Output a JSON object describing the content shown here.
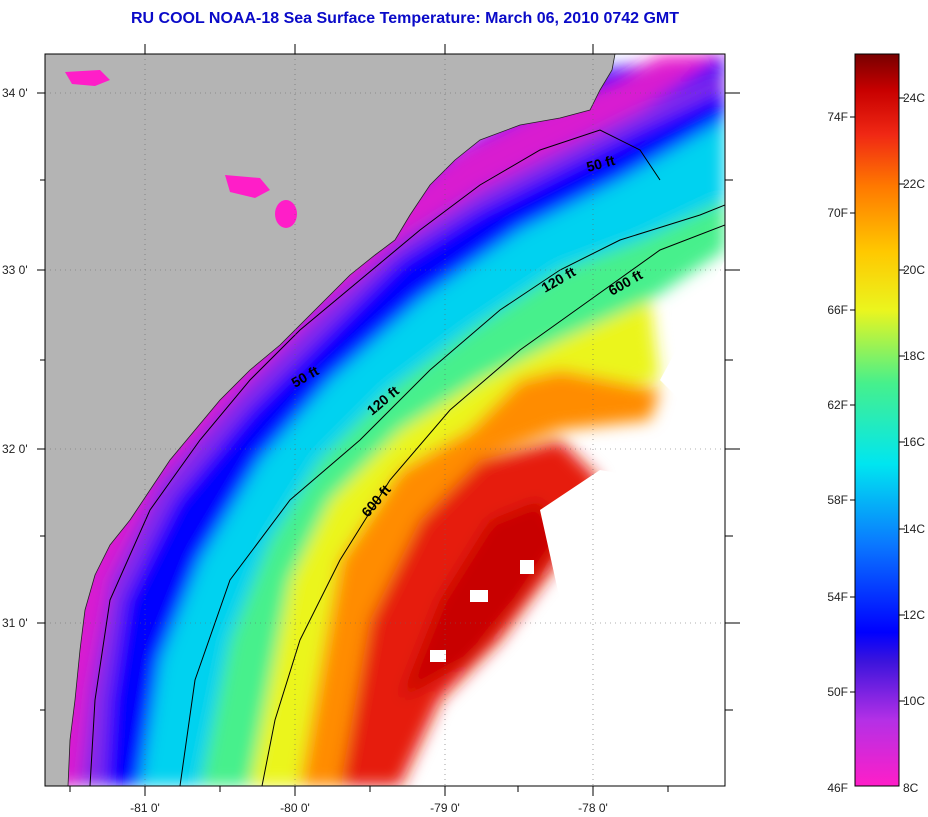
{
  "title": "RU COOL  NOAA-18  Sea Surface Temperature:  March 06, 2010 0742 GMT",
  "colors": {
    "land": "#b4b4b4",
    "no_data": "#ffffff",
    "contour": "#000000",
    "title": "#0a0ac8"
  },
  "axes": {
    "lat_labels": [
      "34 0'",
      "33 0'",
      "32 0'",
      "31 0'"
    ],
    "lon_labels": [
      "-81 0'",
      "-80 0'",
      "-79 0'",
      "-78 0'"
    ]
  },
  "isobaths": [
    {
      "depth": 50,
      "label": "50 ft"
    },
    {
      "depth": 120,
      "label": "120 ft"
    },
    {
      "depth": 600,
      "label": "600 ft"
    }
  ],
  "colorbar": {
    "fahrenheit_labels": [
      "74F",
      "70F",
      "66F",
      "62F",
      "58F",
      "54F",
      "50F",
      "46F"
    ],
    "celsius_labels": [
      "24C",
      "22C",
      "20C",
      "18C",
      "16C",
      "14C",
      "12C",
      "10C",
      "8C"
    ],
    "stops": [
      "#ff1ec8",
      "#b430e6",
      "#3c14dc",
      "#0000ff",
      "#0a78ff",
      "#00e6f0",
      "#46f08c",
      "#ebf51e",
      "#ffc800",
      "#ff7800",
      "#f02814",
      "#c80000",
      "#780000"
    ]
  }
}
